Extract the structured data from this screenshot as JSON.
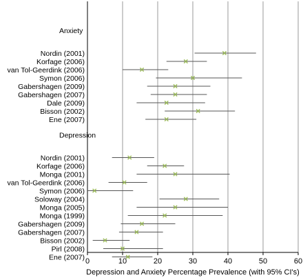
{
  "chart_data": {
    "type": "forest",
    "xlabel": "Depression and Anxiety Percentage Prevalence (with 95% CI's)",
    "xlim": [
      0,
      60
    ],
    "xticks": [
      0,
      10,
      20,
      30,
      40,
      50,
      60
    ],
    "grid": "vertical",
    "marker_color": "#9BBB59",
    "ci_color": "#555555",
    "groups": [
      {
        "heading": "Anxiety",
        "studies": [
          {
            "label": "Nordin (2001)",
            "estimate": 39,
            "ci": [
              30.5,
              48
            ]
          },
          {
            "label": "Korfage (2006)",
            "estimate": 28,
            "ci": [
              22.5,
              34
            ]
          },
          {
            "label": "van Tol-Geerdink (2006)",
            "estimate": 15.5,
            "ci": [
              10,
              23
            ]
          },
          {
            "label": "Symon (2006)",
            "estimate": 30,
            "ci": [
              19.5,
              44
            ]
          },
          {
            "label": "Gabershagen (2009)",
            "estimate": 25,
            "ci": [
              17,
              35
            ]
          },
          {
            "label": "Gabershagen (2007)",
            "estimate": 25,
            "ci": [
              18,
              34
            ]
          },
          {
            "label": "Dale (2009)",
            "estimate": 22.5,
            "ci": [
              14,
              33.5
            ]
          },
          {
            "label": "Bisson (2002)",
            "estimate": 31.5,
            "ci": [
              22,
              42
            ]
          },
          {
            "label": "Ene (2007)",
            "estimate": 22.5,
            "ci": [
              16.5,
              31
            ]
          }
        ]
      },
      {
        "heading": "Depression",
        "studies": [
          {
            "label": "Nordin (2001)",
            "estimate": 12,
            "ci": [
              7,
              19
            ]
          },
          {
            "label": "Korfage (2006)",
            "estimate": 22,
            "ci": [
              17,
              27.5
            ]
          },
          {
            "label": "Monga (2001)",
            "estimate": 25,
            "ci": [
              14,
              40.5
            ]
          },
          {
            "label": "van Tol-Geerdink (2006)",
            "estimate": 10.5,
            "ci": [
              6,
              17
            ]
          },
          {
            "label": "Symon (2006)",
            "estimate": 2,
            "ci": [
              0,
              13
            ]
          },
          {
            "label": "Soloway (2004)",
            "estimate": 28,
            "ci": [
              20.5,
              37.5
            ]
          },
          {
            "label": "Monga (2005)",
            "estimate": 25,
            "ci": [
              14,
              40
            ]
          },
          {
            "label": "Monga (1999)",
            "estimate": 22,
            "ci": [
              11.5,
              38.5
            ]
          },
          {
            "label": "Gabershagen (2009)",
            "estimate": 15.5,
            "ci": [
              9.5,
              25
            ]
          },
          {
            "label": "Gabershagen (2007)",
            "estimate": 14,
            "ci": [
              9,
              21.5
            ]
          },
          {
            "label": "Bisson (2002)",
            "estimate": 5,
            "ci": [
              1.5,
              12
            ]
          },
          {
            "label": "Pirl (2008)",
            "estimate": 10,
            "ci": [
              4.5,
              21.5
            ]
          },
          {
            "label": "Ene (2007)",
            "estimate": 11.5,
            "ci": [
              7,
              18.5
            ]
          }
        ]
      }
    ]
  }
}
